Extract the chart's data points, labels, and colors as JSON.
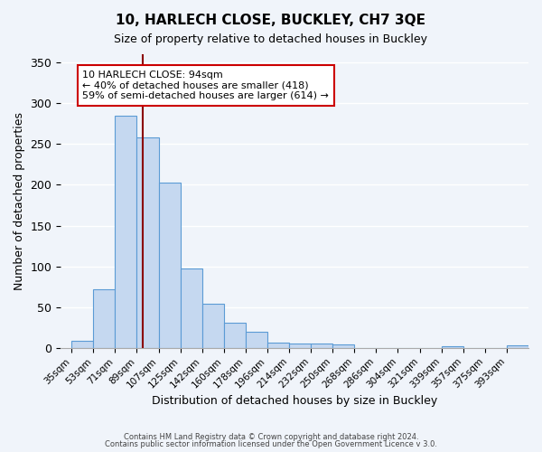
{
  "title": "10, HARLECH CLOSE, BUCKLEY, CH7 3QE",
  "subtitle": "Size of property relative to detached houses in Buckley",
  "xlabel": "Distribution of detached houses by size in Buckley",
  "ylabel": "Number of detached properties",
  "bin_labels": [
    "35sqm",
    "53sqm",
    "71sqm",
    "89sqm",
    "107sqm",
    "125sqm",
    "142sqm",
    "160sqm",
    "178sqm",
    "196sqm",
    "214sqm",
    "232sqm",
    "250sqm",
    "268sqm",
    "286sqm",
    "304sqm",
    "321sqm",
    "339sqm",
    "357sqm",
    "375sqm",
    "393sqm"
  ],
  "bar_heights": [
    9,
    72,
    285,
    258,
    203,
    97,
    54,
    31,
    20,
    7,
    5,
    5,
    4,
    0,
    0,
    0,
    0,
    2,
    0,
    0,
    3
  ],
  "bar_color": "#c5d8f0",
  "bar_edge_color": "#5b9bd5",
  "vline_x": 94,
  "vline_color": "#8b0000",
  "annotation_text": "10 HARLECH CLOSE: 94sqm\n← 40% of detached houses are smaller (418)\n59% of semi-detached houses are larger (614) →",
  "annotation_box_color": "#ffffff",
  "annotation_box_edge": "#cc0000",
  "ylim": [
    0,
    360
  ],
  "yticks": [
    0,
    50,
    100,
    150,
    200,
    250,
    300,
    350
  ],
  "footer1": "Contains HM Land Registry data © Crown copyright and database right 2024.",
  "footer2": "Contains public sector information licensed under the Open Government Licence v 3.0.",
  "bg_color": "#f0f4fa",
  "grid_color": "#ffffff"
}
